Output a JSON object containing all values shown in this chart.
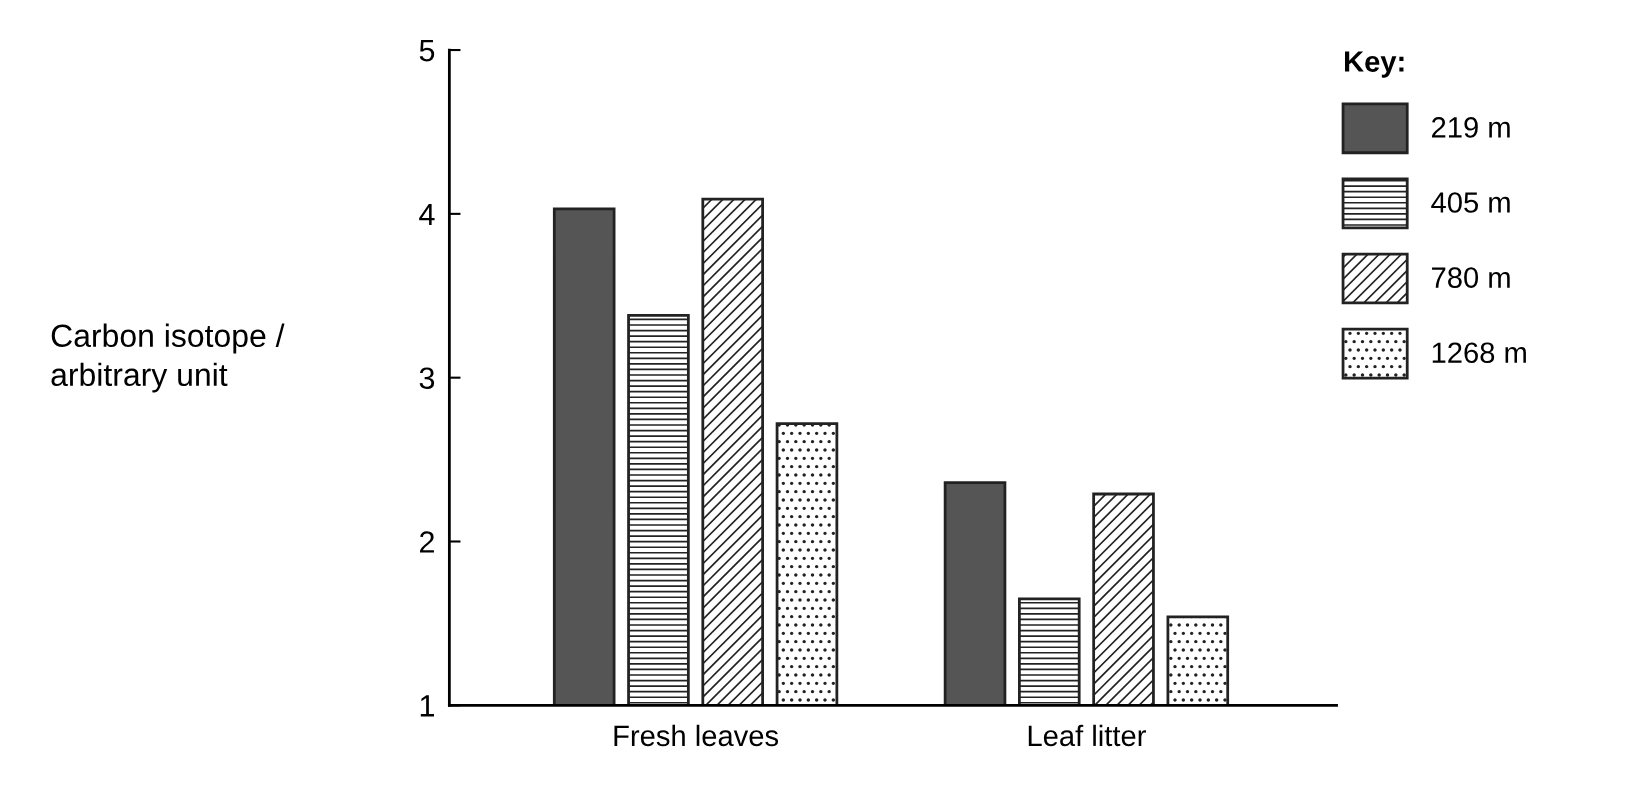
{
  "chart_data": {
    "type": "bar",
    "ylabel": "Carbon isotope /\narbitrary unit",
    "legend_title": "Key:",
    "legend": "top right",
    "categories": [
      "Fresh leaves",
      "Leaf litter"
    ],
    "series": [
      {
        "name": "219 m",
        "color": "#555555",
        "values": [
          4.03,
          2.36
        ]
      },
      {
        "name": "405 m",
        "color": "#222222",
        "values": [
          3.38,
          1.65
        ]
      },
      {
        "name": "780 m",
        "color": "#222222",
        "values": [
          4.09,
          2.29
        ]
      },
      {
        "name": "1268 m",
        "color": "#222222",
        "values": [
          2.72,
          1.54
        ]
      }
    ],
    "ylim": [
      1,
      5
    ],
    "yticks": [
      1,
      2,
      3,
      4,
      5
    ],
    "grid": false
  }
}
